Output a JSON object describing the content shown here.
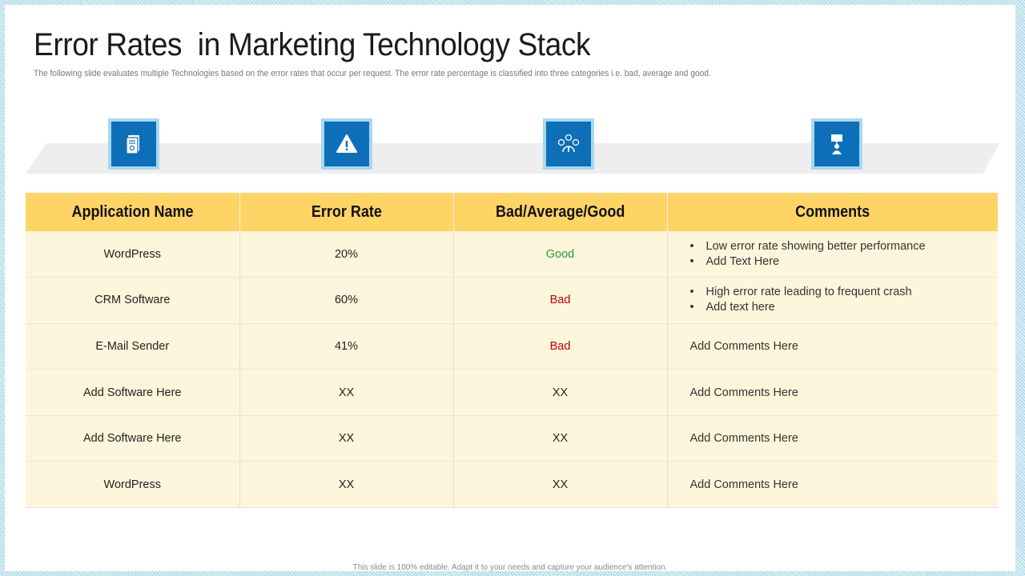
{
  "title": "Error Rates  in Marketing Technology Stack",
  "subtitle": "The following slide evaluates multiple Technologies based on the error rates that occur per request. The error rate percentage is classified  into three categories i.e. bad, average and good.",
  "icons": [
    "document-icon",
    "warning-icon",
    "emotion-gauge-icon",
    "person-presentation-icon"
  ],
  "table": {
    "headers": [
      "Application Name",
      "Error Rate",
      "Bad/Average/Good",
      "Comments"
    ],
    "rows": [
      {
        "app": "WordPress",
        "rate": "20%",
        "status": "Good",
        "comments": [
          "Low error rate showing better performance",
          "Add Text Here"
        ]
      },
      {
        "app": "CRM Software",
        "rate": "60%",
        "status": "Bad",
        "comments": [
          "High error rate leading to frequent crash",
          "Add text here"
        ]
      },
      {
        "app": "E-Mail Sender",
        "rate": "41%",
        "status": "Bad",
        "comment": "Add Comments Here"
      },
      {
        "app": "Add Software Here",
        "rate": "XX",
        "status": "XX",
        "comment": "Add Comments Here"
      },
      {
        "app": "Add Software Here",
        "rate": "XX",
        "status": "XX",
        "comment": "Add Comments Here"
      },
      {
        "app": "WordPress",
        "rate": "XX",
        "status": "XX",
        "comment": "Add Comments Here"
      }
    ]
  },
  "colors": {
    "header": "#fed565",
    "row": "#fef6dc",
    "icon": "#0d6fb8",
    "good": "#1e9e3a",
    "bad": "#c00000"
  },
  "footer": "This slide is  100% editable.  Adapt it  to your needs and capture your audience's attention."
}
